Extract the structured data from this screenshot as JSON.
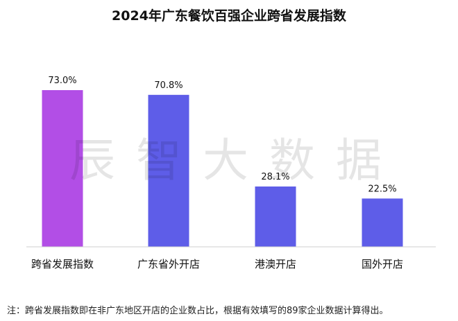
{
  "chart_data": {
    "type": "bar",
    "title": "2024年广东餐饮百强企业跨省发展指数",
    "categories": [
      "跨省发展指数",
      "广东省外开店",
      "港澳开店",
      "国外开店"
    ],
    "values": [
      73.0,
      70.8,
      28.1,
      22.5
    ],
    "value_labels": [
      "73.0%",
      "70.8%",
      "28.1%",
      "22.5%"
    ],
    "unit": "%",
    "ylim": [
      0,
      100
    ],
    "grid": false,
    "legend": "none",
    "colors": [
      "#b24ee6",
      "#5e5de8",
      "#5e5de8",
      "#5e5de8"
    ],
    "note": "注：跨省发展指数即在非广东地区开店的企业数占比，根据有效填写的89家企业数据计算得出。"
  },
  "watermark": "辰智大数据"
}
